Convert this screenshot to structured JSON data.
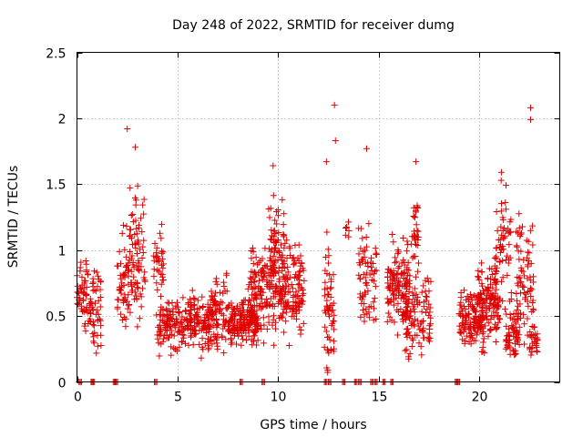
{
  "chart_data": {
    "type": "scatter",
    "title": "Day 248 of 2022, SRMTID for receiver dumg",
    "xlabel": "GPS time / hours",
    "ylabel": "SRMTID / TECUs",
    "xlim": [
      0,
      24
    ],
    "ylim": [
      0,
      2.5
    ],
    "xticks": [
      0,
      5,
      10,
      15,
      20
    ],
    "yticks": [
      0,
      0.5,
      1,
      1.5,
      2,
      2.5
    ],
    "xtick_labels": [
      "0",
      "5",
      "10",
      "15",
      "20"
    ],
    "ytick_labels": [
      "0",
      "0.5",
      "1",
      "1.5",
      "2",
      "2.5"
    ],
    "grid": true,
    "marker": "+",
    "marker_color": "#e00000",
    "clusters": [
      {
        "x_range": [
          0.0,
          0.8
        ],
        "y_mean": 0.65,
        "y_spread": 0.25,
        "count": 70
      },
      {
        "x_range": [
          0.8,
          1.2
        ],
        "y_mean": 0.55,
        "y_spread": 0.35,
        "count": 35
      },
      {
        "x_range": [
          2.0,
          2.6
        ],
        "y_mean": 0.75,
        "y_spread": 0.35,
        "count": 55
      },
      {
        "x_range": [
          2.6,
          3.4
        ],
        "y_mean": 0.95,
        "y_spread": 0.45,
        "count": 80
      },
      {
        "x_range": [
          3.8,
          4.3
        ],
        "y_mean": 0.85,
        "y_spread": 0.3,
        "count": 35
      },
      {
        "x_range": [
          4.0,
          7.0
        ],
        "y_mean": 0.45,
        "y_spread": 0.18,
        "count": 260
      },
      {
        "x_range": [
          6.5,
          7.5
        ],
        "y_mean": 0.55,
        "y_spread": 0.25,
        "count": 60
      },
      {
        "x_range": [
          7.5,
          9.0
        ],
        "y_mean": 0.45,
        "y_spread": 0.15,
        "count": 170
      },
      {
        "x_range": [
          8.5,
          10.0
        ],
        "y_mean": 0.7,
        "y_spread": 0.3,
        "count": 150
      },
      {
        "x_range": [
          9.5,
          10.3
        ],
        "y_mean": 1.0,
        "y_spread": 0.35,
        "count": 70
      },
      {
        "x_range": [
          10.0,
          11.3
        ],
        "y_mean": 0.7,
        "y_spread": 0.3,
        "count": 140
      },
      {
        "x_range": [
          12.3,
          12.8
        ],
        "y_mean": 0.55,
        "y_spread": 0.45,
        "count": 60
      },
      {
        "x_range": [
          13.3,
          13.6
        ],
        "y_mean": 1.15,
        "y_spread": 0.1,
        "count": 6
      },
      {
        "x_range": [
          14.0,
          14.9
        ],
        "y_mean": 0.8,
        "y_spread": 0.35,
        "count": 70
      },
      {
        "x_range": [
          15.4,
          16.5
        ],
        "y_mean": 0.75,
        "y_spread": 0.3,
        "count": 130
      },
      {
        "x_range": [
          16.3,
          17.6
        ],
        "y_mean": 0.5,
        "y_spread": 0.3,
        "count": 110
      },
      {
        "x_range": [
          16.6,
          17.1
        ],
        "y_mean": 1.1,
        "y_spread": 0.3,
        "count": 30
      },
      {
        "x_range": [
          19.0,
          20.2
        ],
        "y_mean": 0.48,
        "y_spread": 0.18,
        "count": 130
      },
      {
        "x_range": [
          19.9,
          21.0
        ],
        "y_mean": 0.6,
        "y_spread": 0.25,
        "count": 130
      },
      {
        "x_range": [
          20.8,
          21.6
        ],
        "y_mean": 1.0,
        "y_spread": 0.4,
        "count": 60
      },
      {
        "x_range": [
          21.3,
          22.0
        ],
        "y_mean": 0.35,
        "y_spread": 0.15,
        "count": 60
      },
      {
        "x_range": [
          21.8,
          22.7
        ],
        "y_mean": 0.8,
        "y_spread": 0.45,
        "count": 80
      },
      {
        "x_range": [
          22.5,
          22.9
        ],
        "y_mean": 0.3,
        "y_spread": 0.1,
        "count": 25
      }
    ],
    "highlight_points": [
      {
        "x": 2.5,
        "y": 1.92
      },
      {
        "x": 2.9,
        "y": 1.78
      },
      {
        "x": 9.75,
        "y": 1.64
      },
      {
        "x": 12.8,
        "y": 2.1
      },
      {
        "x": 12.85,
        "y": 1.83
      },
      {
        "x": 12.4,
        "y": 1.67
      },
      {
        "x": 14.4,
        "y": 1.77
      },
      {
        "x": 16.85,
        "y": 1.67
      },
      {
        "x": 22.55,
        "y": 2.08
      },
      {
        "x": 22.55,
        "y": 1.99
      },
      {
        "x": 21.1,
        "y": 1.59
      }
    ],
    "zero_points": [
      0.1,
      0.7,
      0.75,
      1.8,
      1.9,
      3.85,
      8.1,
      9.2,
      12.3,
      12.5,
      13.2,
      13.8,
      14.0,
      14.6,
      14.8,
      15.2,
      15.6,
      18.8,
      18.9
    ]
  }
}
